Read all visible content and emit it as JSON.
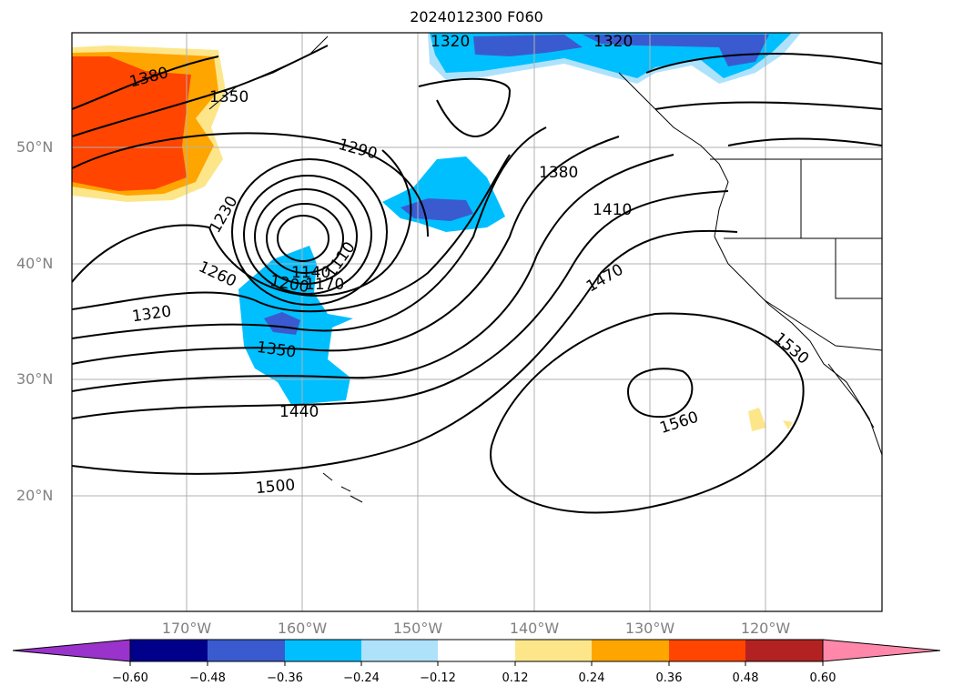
{
  "title": "2024012300 F060",
  "lat_labels": [
    "50°N",
    "40°N",
    "30°N",
    "20°N"
  ],
  "lon_labels": [
    "170°W",
    "160°W",
    "150°W",
    "140°W",
    "130°W",
    "120°W"
  ],
  "contour_labels": [
    "1380",
    "1350",
    "1290",
    "1230",
    "1320",
    "1260",
    "1200",
    "1140",
    "1170",
    "1110",
    "1350",
    "1440",
    "1500",
    "1380",
    "1410",
    "1470",
    "1530",
    "1560",
    "1320",
    "1320"
  ],
  "colorbar": {
    "ticks": [
      "−0.60",
      "−0.48",
      "−0.36",
      "−0.24",
      "−0.12",
      "0.12",
      "0.24",
      "0.36",
      "0.48",
      "0.60"
    ],
    "colors": [
      "#9933cc",
      "#00008b",
      "#3a5bcf",
      "#00bfff",
      "#aee2fb",
      "#ffffff",
      "#fde68a",
      "#ffa500",
      "#ff4500",
      "#b22222",
      "#ff88aa"
    ]
  }
}
